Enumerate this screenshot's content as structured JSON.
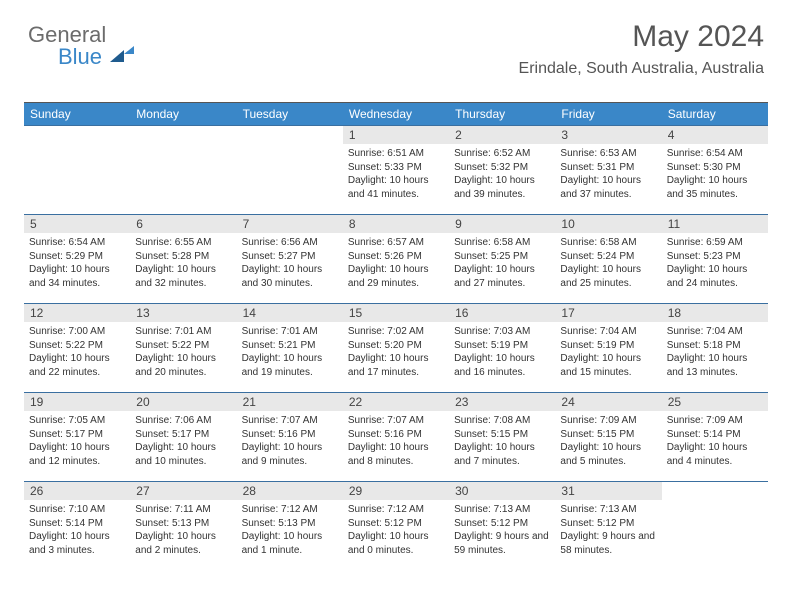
{
  "logo": {
    "line1": "General",
    "line2": "Blue"
  },
  "title": "May 2024",
  "location": "Erindale, South Australia, Australia",
  "colors": {
    "header_bg": "#3a87c8",
    "header_text": "#ffffff",
    "daynum_bg": "#e8e8e8",
    "row_border": "#3a6fa0",
    "logo_gray": "#6c6c6c",
    "logo_blue": "#3a87c8"
  },
  "day_headers": [
    "Sunday",
    "Monday",
    "Tuesday",
    "Wednesday",
    "Thursday",
    "Friday",
    "Saturday"
  ],
  "weeks": [
    [
      {
        "n": "",
        "sunrise": "",
        "sunset": "",
        "daylight": ""
      },
      {
        "n": "",
        "sunrise": "",
        "sunset": "",
        "daylight": ""
      },
      {
        "n": "",
        "sunrise": "",
        "sunset": "",
        "daylight": ""
      },
      {
        "n": "1",
        "sunrise": "6:51 AM",
        "sunset": "5:33 PM",
        "daylight": "10 hours and 41 minutes."
      },
      {
        "n": "2",
        "sunrise": "6:52 AM",
        "sunset": "5:32 PM",
        "daylight": "10 hours and 39 minutes."
      },
      {
        "n": "3",
        "sunrise": "6:53 AM",
        "sunset": "5:31 PM",
        "daylight": "10 hours and 37 minutes."
      },
      {
        "n": "4",
        "sunrise": "6:54 AM",
        "sunset": "5:30 PM",
        "daylight": "10 hours and 35 minutes."
      }
    ],
    [
      {
        "n": "5",
        "sunrise": "6:54 AM",
        "sunset": "5:29 PM",
        "daylight": "10 hours and 34 minutes."
      },
      {
        "n": "6",
        "sunrise": "6:55 AM",
        "sunset": "5:28 PM",
        "daylight": "10 hours and 32 minutes."
      },
      {
        "n": "7",
        "sunrise": "6:56 AM",
        "sunset": "5:27 PM",
        "daylight": "10 hours and 30 minutes."
      },
      {
        "n": "8",
        "sunrise": "6:57 AM",
        "sunset": "5:26 PM",
        "daylight": "10 hours and 29 minutes."
      },
      {
        "n": "9",
        "sunrise": "6:58 AM",
        "sunset": "5:25 PM",
        "daylight": "10 hours and 27 minutes."
      },
      {
        "n": "10",
        "sunrise": "6:58 AM",
        "sunset": "5:24 PM",
        "daylight": "10 hours and 25 minutes."
      },
      {
        "n": "11",
        "sunrise": "6:59 AM",
        "sunset": "5:23 PM",
        "daylight": "10 hours and 24 minutes."
      }
    ],
    [
      {
        "n": "12",
        "sunrise": "7:00 AM",
        "sunset": "5:22 PM",
        "daylight": "10 hours and 22 minutes."
      },
      {
        "n": "13",
        "sunrise": "7:01 AM",
        "sunset": "5:22 PM",
        "daylight": "10 hours and 20 minutes."
      },
      {
        "n": "14",
        "sunrise": "7:01 AM",
        "sunset": "5:21 PM",
        "daylight": "10 hours and 19 minutes."
      },
      {
        "n": "15",
        "sunrise": "7:02 AM",
        "sunset": "5:20 PM",
        "daylight": "10 hours and 17 minutes."
      },
      {
        "n": "16",
        "sunrise": "7:03 AM",
        "sunset": "5:19 PM",
        "daylight": "10 hours and 16 minutes."
      },
      {
        "n": "17",
        "sunrise": "7:04 AM",
        "sunset": "5:19 PM",
        "daylight": "10 hours and 15 minutes."
      },
      {
        "n": "18",
        "sunrise": "7:04 AM",
        "sunset": "5:18 PM",
        "daylight": "10 hours and 13 minutes."
      }
    ],
    [
      {
        "n": "19",
        "sunrise": "7:05 AM",
        "sunset": "5:17 PM",
        "daylight": "10 hours and 12 minutes."
      },
      {
        "n": "20",
        "sunrise": "7:06 AM",
        "sunset": "5:17 PM",
        "daylight": "10 hours and 10 minutes."
      },
      {
        "n": "21",
        "sunrise": "7:07 AM",
        "sunset": "5:16 PM",
        "daylight": "10 hours and 9 minutes."
      },
      {
        "n": "22",
        "sunrise": "7:07 AM",
        "sunset": "5:16 PM",
        "daylight": "10 hours and 8 minutes."
      },
      {
        "n": "23",
        "sunrise": "7:08 AM",
        "sunset": "5:15 PM",
        "daylight": "10 hours and 7 minutes."
      },
      {
        "n": "24",
        "sunrise": "7:09 AM",
        "sunset": "5:15 PM",
        "daylight": "10 hours and 5 minutes."
      },
      {
        "n": "25",
        "sunrise": "7:09 AM",
        "sunset": "5:14 PM",
        "daylight": "10 hours and 4 minutes."
      }
    ],
    [
      {
        "n": "26",
        "sunrise": "7:10 AM",
        "sunset": "5:14 PM",
        "daylight": "10 hours and 3 minutes."
      },
      {
        "n": "27",
        "sunrise": "7:11 AM",
        "sunset": "5:13 PM",
        "daylight": "10 hours and 2 minutes."
      },
      {
        "n": "28",
        "sunrise": "7:12 AM",
        "sunset": "5:13 PM",
        "daylight": "10 hours and 1 minute."
      },
      {
        "n": "29",
        "sunrise": "7:12 AM",
        "sunset": "5:12 PM",
        "daylight": "10 hours and 0 minutes."
      },
      {
        "n": "30",
        "sunrise": "7:13 AM",
        "sunset": "5:12 PM",
        "daylight": "9 hours and 59 minutes."
      },
      {
        "n": "31",
        "sunrise": "7:13 AM",
        "sunset": "5:12 PM",
        "daylight": "9 hours and 58 minutes."
      },
      {
        "n": "",
        "sunrise": "",
        "sunset": "",
        "daylight": ""
      }
    ]
  ],
  "labels": {
    "sunrise": "Sunrise:",
    "sunset": "Sunset:",
    "daylight": "Daylight:"
  }
}
